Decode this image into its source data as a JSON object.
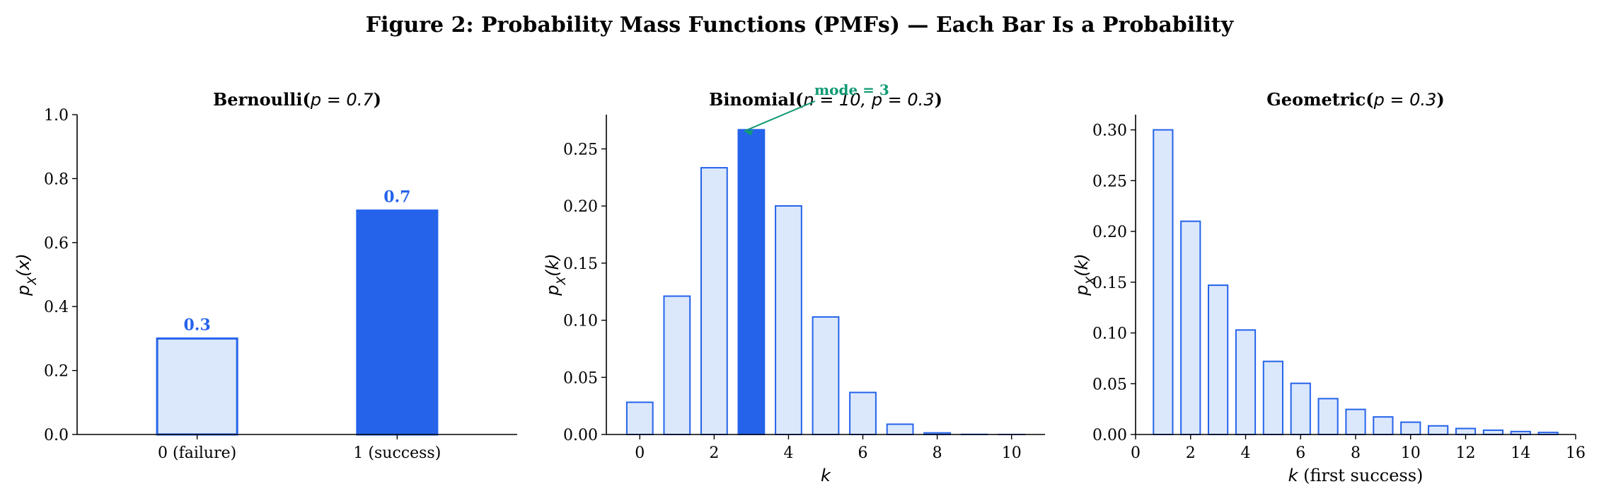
{
  "figure_title": "Figure 2: Probability Mass Functions (PMFs) — Each Bar Is a Probability",
  "colors": {
    "light_fill": "#dbe8fc",
    "edge": "#2563eb",
    "highlight": "#2563eb",
    "annotation": "#109a74",
    "axis": "#000000"
  },
  "chart_data": [
    {
      "type": "bar",
      "title_prefix": "Bernoulli(",
      "title_math": "p = 0.7",
      "title_suffix": ")",
      "categories": [
        "0 (failure)",
        "1 (success)"
      ],
      "values": [
        0.3,
        0.7
      ],
      "value_labels": [
        "0.3",
        "0.7"
      ],
      "highlight_index": 1,
      "ylabel": "pX(x)",
      "ylabel_main": "p",
      "ylabel_sub": "X",
      "ylabel_arg": "(x)",
      "xlabel": "",
      "ylim": [
        0,
        1.0
      ],
      "yticks": [
        "0.0",
        "0.2",
        "0.4",
        "0.6",
        "0.8",
        "1.0"
      ]
    },
    {
      "type": "bar",
      "title_prefix": "Binomial(",
      "title_math": "n = 10, p = 0.3",
      "title_suffix": ")",
      "x": [
        0,
        1,
        2,
        3,
        4,
        5,
        6,
        7,
        8,
        9,
        10
      ],
      "values": [
        0.0282,
        0.1211,
        0.2335,
        0.2668,
        0.2001,
        0.1029,
        0.0368,
        0.009,
        0.0014,
        0.0001,
        0.0
      ],
      "highlight_index": 3,
      "annotation": "mode = 3",
      "ylabel": "pX(k)",
      "ylabel_main": "p",
      "ylabel_sub": "X",
      "ylabel_arg": "(k)",
      "xlabel": "k",
      "xlim": [
        -0.9,
        10.9
      ],
      "ylim": [
        0,
        0.28
      ],
      "xticks": [
        "0",
        "2",
        "4",
        "6",
        "8",
        "10"
      ],
      "yticks": [
        "0.00",
        "0.05",
        "0.10",
        "0.15",
        "0.20",
        "0.25"
      ]
    },
    {
      "type": "bar",
      "title_prefix": "Geometric(",
      "title_math": "p = 0.3",
      "title_suffix": ")",
      "x": [
        1,
        2,
        3,
        4,
        5,
        6,
        7,
        8,
        9,
        10,
        11,
        12,
        13,
        14,
        15
      ],
      "values": [
        0.3,
        0.21,
        0.147,
        0.1029,
        0.072,
        0.0504,
        0.0353,
        0.0247,
        0.0173,
        0.0121,
        0.0085,
        0.0059,
        0.0042,
        0.0029,
        0.002
      ],
      "ylabel": "pX(k)",
      "ylabel_main": "p",
      "ylabel_sub": "X",
      "ylabel_arg": "(k)",
      "xlabel": "k (first success)",
      "xlabel_math": "k",
      "xlabel_rest": " (first success)",
      "xlim": [
        0,
        16
      ],
      "ylim": [
        0,
        0.315
      ],
      "xticks": [
        "0",
        "2",
        "4",
        "6",
        "8",
        "10",
        "12",
        "14",
        "16"
      ],
      "yticks": [
        "0.00",
        "0.05",
        "0.10",
        "0.15",
        "0.20",
        "0.25",
        "0.30"
      ]
    }
  ]
}
